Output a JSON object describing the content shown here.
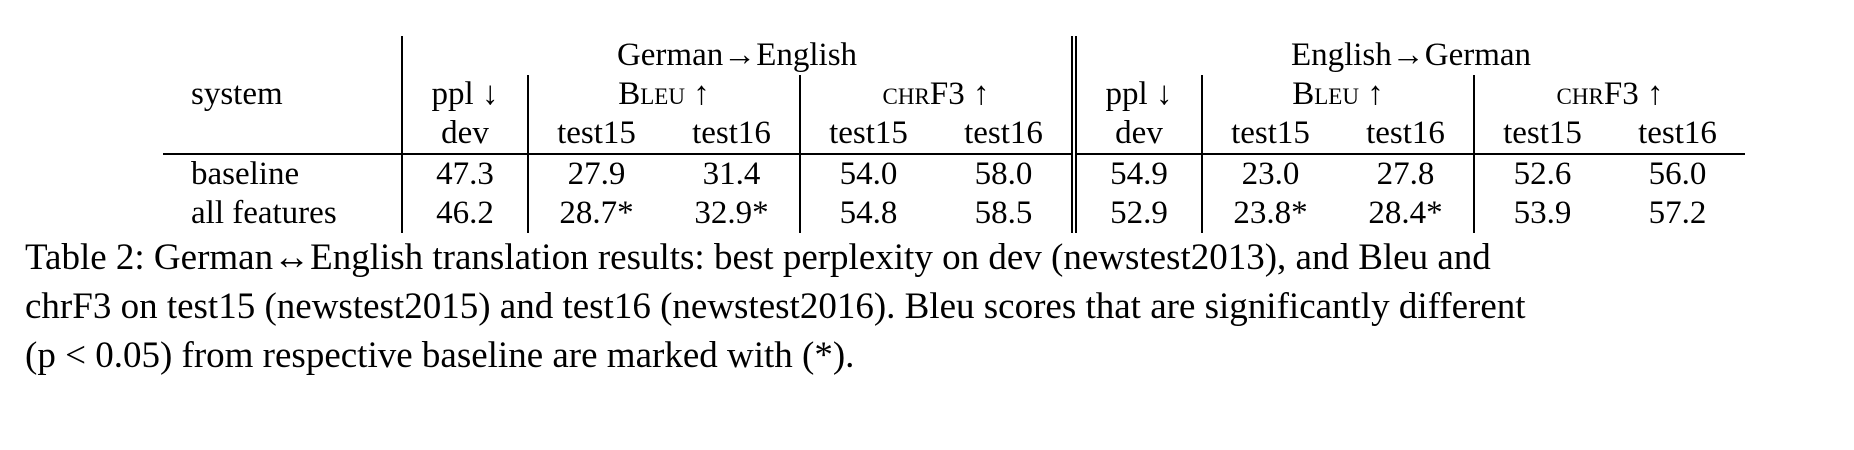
{
  "table": {
    "groups": [
      "German→English",
      "English→German"
    ],
    "row_header": "system",
    "metrics": {
      "ppl": "ppl ↓",
      "bleu": "Bleu ↑",
      "chrf": "chrF3 ↑"
    },
    "subheaders": {
      "dev": "dev",
      "test15": "test15",
      "test16": "test16"
    },
    "rows": [
      {
        "system": "baseline",
        "de_en": {
          "ppl": "47.3",
          "bleu15": "27.9",
          "bleu16": "31.4",
          "chrf15": "54.0",
          "chrf16": "58.0"
        },
        "en_de": {
          "ppl": "54.9",
          "bleu15": "23.0",
          "bleu16": "27.8",
          "chrf15": "52.6",
          "chrf16": "56.0"
        }
      },
      {
        "system": "all features",
        "de_en": {
          "ppl": "46.2",
          "bleu15": "28.7*",
          "bleu16": "32.9*",
          "chrf15": "54.8",
          "chrf16": "58.5"
        },
        "en_de": {
          "ppl": "52.9",
          "bleu15": "23.8*",
          "bleu16": "28.4*",
          "chrf15": "53.9",
          "chrf16": "57.2"
        }
      }
    ]
  },
  "caption": {
    "lines": [
      "Table 2: German↔English translation results: best perplexity on dev (newstest2013), and Bleu and",
      "chrF3 on test15 (newstest2015) and test16 (newstest2016). Bleu scores that are significantly different",
      "(p < 0.05) from respective baseline are marked with (*)."
    ]
  }
}
